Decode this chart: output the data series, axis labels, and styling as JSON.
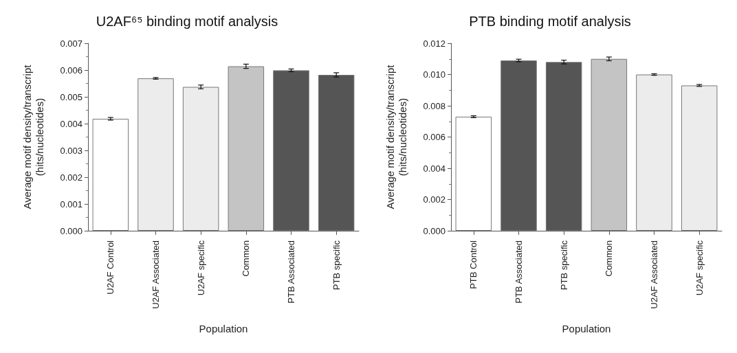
{
  "chart_data": [
    {
      "type": "bar",
      "title": "U2AF⁶⁵ binding motif analysis",
      "xlabel": "Population",
      "ylabel": "Average motif density/transcript\n(hits/nucleotides)",
      "categories": [
        "U2AF Control",
        "U2AF Associated",
        "U2AF specific",
        "Common",
        "PTB Associated",
        "PTB specific"
      ],
      "values": [
        0.00418,
        0.00569,
        0.00537,
        0.00614,
        0.00599,
        0.00582
      ],
      "errors": [
        5e-05,
        3e-05,
        7e-05,
        8e-05,
        5e-05,
        8e-05
      ],
      "colors": [
        "#ffffff",
        "#ececec",
        "#ececec",
        "#c4c4c4",
        "#555555",
        "#555555"
      ],
      "ylim": [
        0,
        0.007
      ],
      "yticks": [
        {
          "value": 0,
          "label": "0.000"
        },
        {
          "value": 0.001,
          "label": "0.001"
        },
        {
          "value": 0.002,
          "label": "0.002"
        },
        {
          "value": 0.003,
          "label": "0.003"
        },
        {
          "value": 0.004,
          "label": "0.004"
        },
        {
          "value": 0.005,
          "label": "0.005"
        },
        {
          "value": 0.006,
          "label": "0.006"
        },
        {
          "value": 0.007,
          "label": "0.007"
        }
      ],
      "grid": false
    },
    {
      "type": "bar",
      "title": "PTB binding motif analysis",
      "xlabel": "Population",
      "ylabel": "Average motif density/transcript\n(hits/nucleotides)",
      "categories": [
        "PTB Control",
        "PTB Associated",
        "PTB specific",
        "Common",
        "U2AF Associated",
        "U2AF specific"
      ],
      "values": [
        0.0073,
        0.0109,
        0.0108,
        0.011,
        0.01,
        0.0093
      ],
      "errors": [
        6e-05,
        8e-05,
        0.00012,
        0.00012,
        5e-05,
        6e-05
      ],
      "colors": [
        "#ffffff",
        "#555555",
        "#555555",
        "#c4c4c4",
        "#ececec",
        "#ececec"
      ],
      "ylim": [
        0,
        0.012
      ],
      "yticks": [
        {
          "value": 0,
          "label": "0.000"
        },
        {
          "value": 0.002,
          "label": "0.002"
        },
        {
          "value": 0.004,
          "label": "0.004"
        },
        {
          "value": 0.006,
          "label": "0.006"
        },
        {
          "value": 0.008,
          "label": "0.008"
        },
        {
          "value": 0.01,
          "label": "0.010"
        },
        {
          "value": 0.012,
          "label": "0.012"
        }
      ],
      "grid": false
    }
  ]
}
